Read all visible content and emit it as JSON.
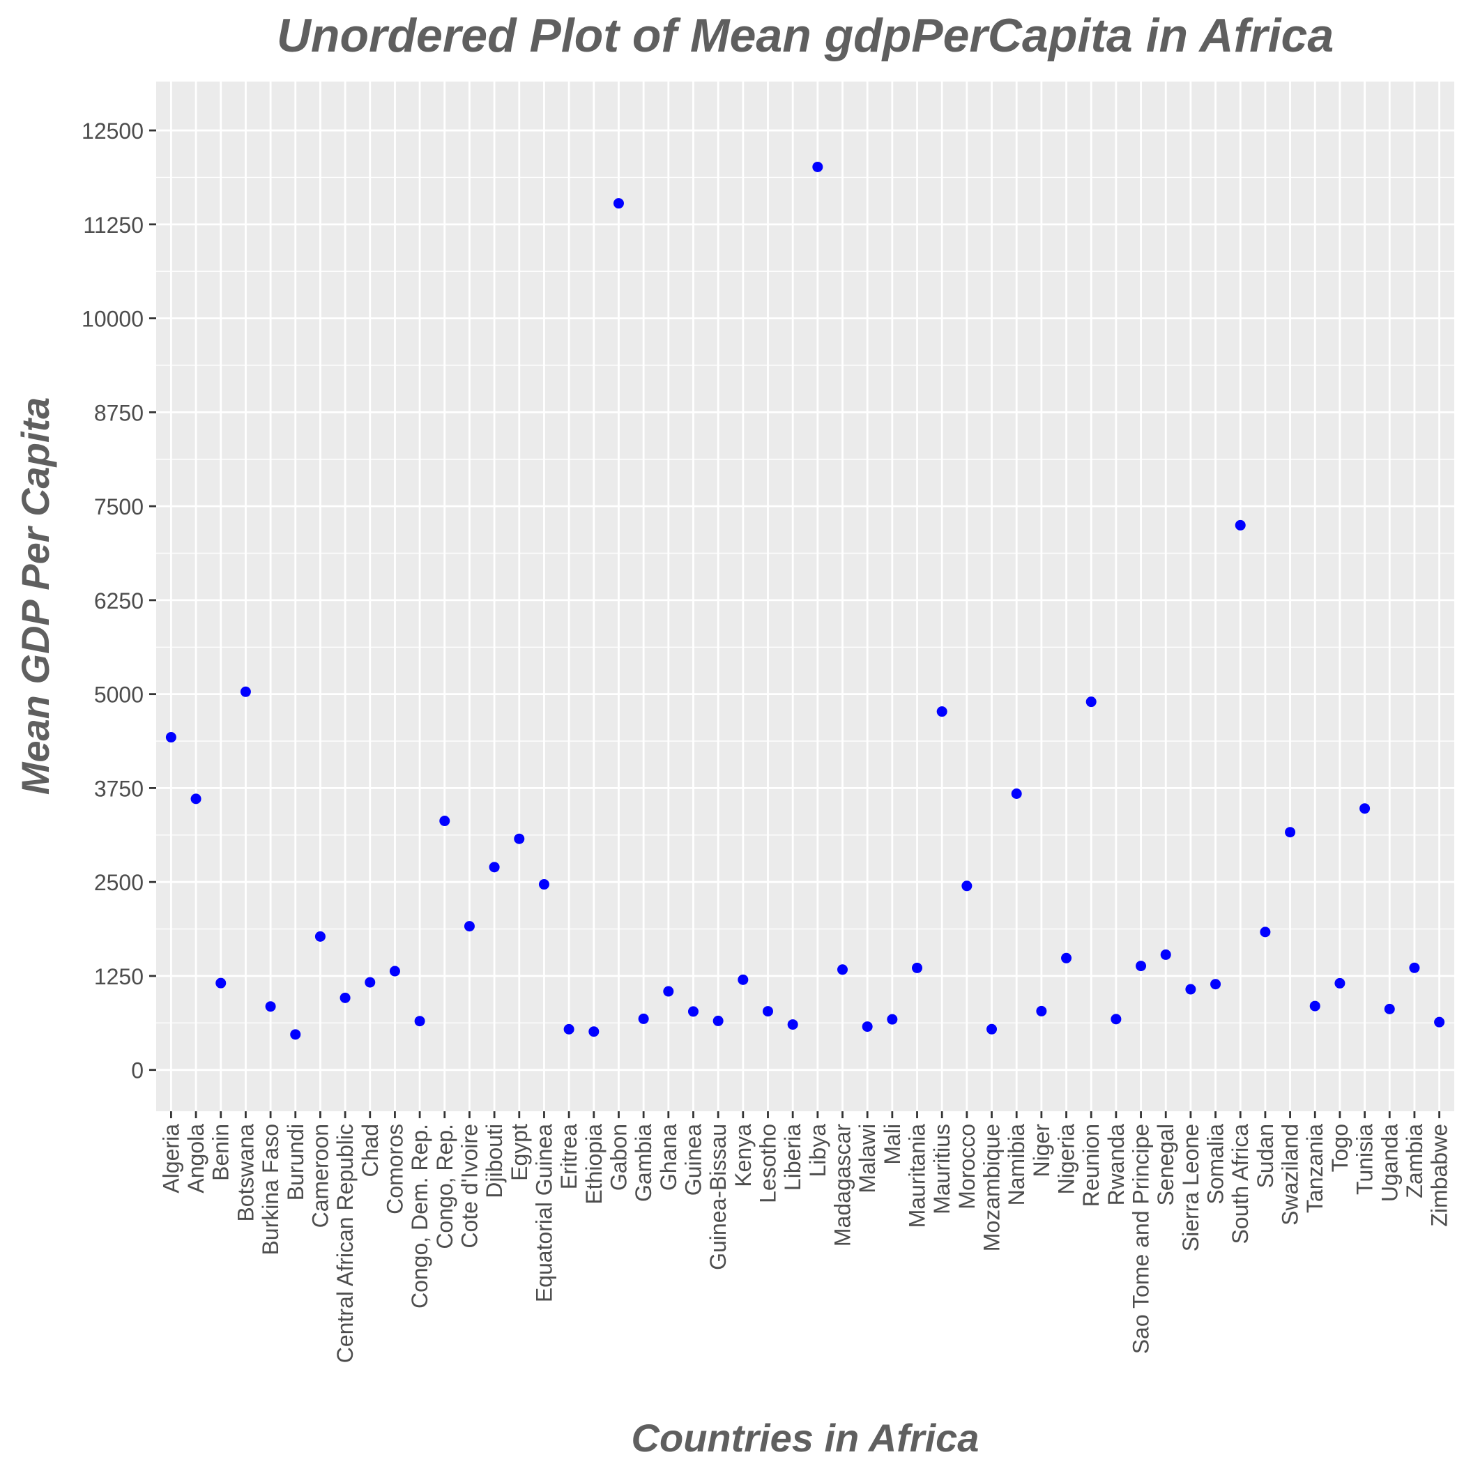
{
  "chart_data": {
    "type": "scatter",
    "title": "Unordered Plot of Mean gdpPerCapita in Africa",
    "xlabel": "Countries in Africa",
    "ylabel": "Mean GDP Per Capita",
    "ylim": [
      -550,
      13150
    ],
    "yticks": [
      0,
      1250,
      2500,
      3750,
      5000,
      6250,
      7500,
      8750,
      10000,
      11250,
      12500
    ],
    "ytick_labels": [
      "0",
      "1250",
      "2500",
      "3750",
      "5000",
      "6250",
      "7500",
      "8750",
      "10000",
      "11250",
      "12500"
    ],
    "grid": true,
    "point_color": "#0000ff",
    "panel_background": "#ebebeb",
    "grid_color": "#ffffff",
    "categories": [
      "Algeria",
      "Angola",
      "Benin",
      "Botswana",
      "Burkina Faso",
      "Burundi",
      "Cameroon",
      "Central African Republic",
      "Chad",
      "Comoros",
      "Congo, Dem. Rep.",
      "Congo, Rep.",
      "Cote d'Ivoire",
      "Djibouti",
      "Egypt",
      "Equatorial Guinea",
      "Eritrea",
      "Ethiopia",
      "Gabon",
      "Gambia",
      "Ghana",
      "Guinea",
      "Guinea-Bissau",
      "Kenya",
      "Lesotho",
      "Liberia",
      "Libya",
      "Madagascar",
      "Malawi",
      "Mali",
      "Mauritania",
      "Mauritius",
      "Morocco",
      "Mozambique",
      "Namibia",
      "Niger",
      "Nigeria",
      "Reunion",
      "Rwanda",
      "Sao Tome and Principe",
      "Senegal",
      "Sierra Leone",
      "Somalia",
      "South Africa",
      "Sudan",
      "Swaziland",
      "Tanzania",
      "Togo",
      "Tunisia",
      "Uganda",
      "Zambia",
      "Zimbabwe"
    ],
    "values": [
      4426,
      3607,
      1155,
      5031,
      844,
      472,
      1775,
      959,
      1165,
      1314,
      649,
      3313,
      1912,
      2698,
      3075,
      2469,
      541,
      510,
      11530,
      680,
      1045,
      777,
      652,
      1200,
      780,
      604,
      12014,
      1335,
      576,
      673,
      1357,
      4768,
      2448,
      542,
      3675,
      782,
      1488,
      4898,
      676,
      1383,
      1533,
      1073,
      1141,
      7247,
      1835,
      3163,
      850,
      1153,
      3478,
      810,
      1358,
      636
    ]
  }
}
